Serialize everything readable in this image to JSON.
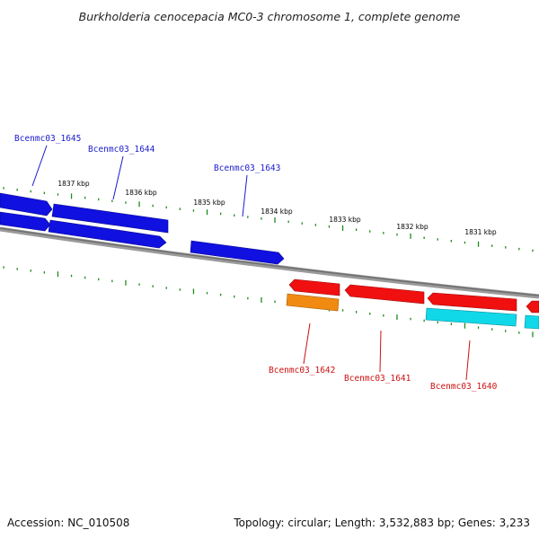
{
  "title": "Burkholderia cenocepacia MC0-3 chromosome 1, complete genome",
  "accession_text": "Accession: NC_010508",
  "summary_text": "Topology: circular; Length: 3,532,883 bp; Genes: 3,233",
  "colors": {
    "backbone": "#7f7f7f",
    "tick": "#1e8a1e",
    "forward_gene": "#1010e0",
    "reverse_gene": "#f01010",
    "orange_feature": "#f08a10",
    "cyan_feature": "#10d8e8",
    "forward_label": "#1a1acc",
    "reverse_label": "#cc1010"
  },
  "scale_labels": [
    "1837 kbp",
    "1836 kbp",
    "1835 kbp",
    "1834 kbp",
    "1833 kbp",
    "1832 kbp",
    "1831 kbp"
  ],
  "gene_labels": {
    "forward": [
      "Bcenmc03_1645",
      "Bcenmc03_1644",
      "Bcenmc03_1643"
    ],
    "reverse": [
      "Bcenmc03_1642",
      "Bcenmc03_1641",
      "Bcenmc03_1640"
    ]
  }
}
